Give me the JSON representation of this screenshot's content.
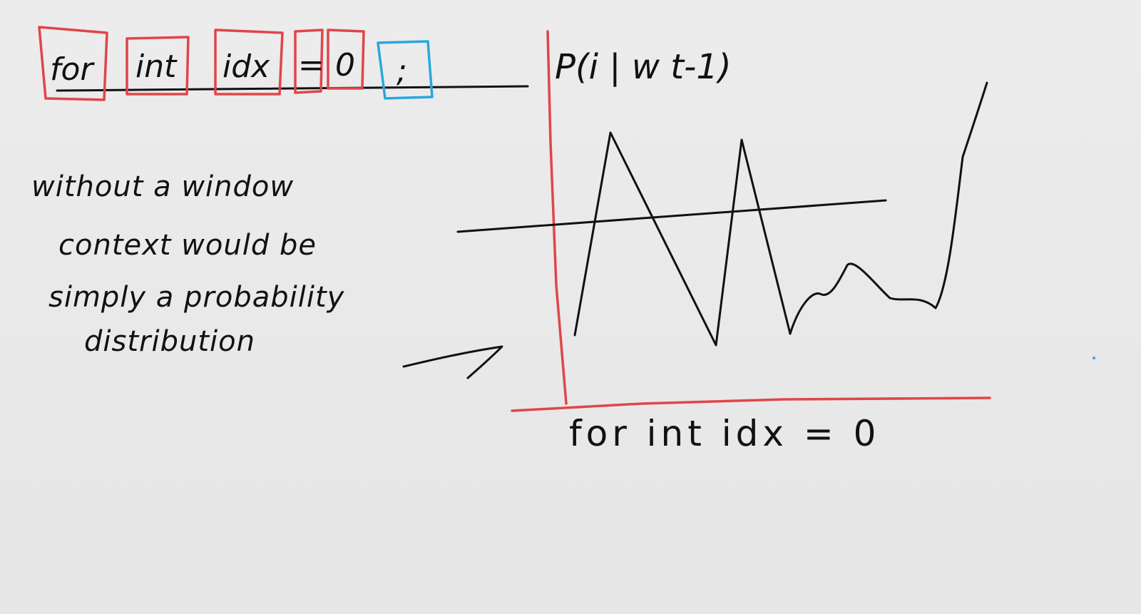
{
  "tokens": [
    {
      "text": "for",
      "box": "red"
    },
    {
      "text": "int",
      "box": "red"
    },
    {
      "text": "idx",
      "box": "red"
    },
    {
      "text": "=",
      "box": "red"
    },
    {
      "text": "0",
      "box": "red"
    },
    {
      "text": ";",
      "box": "blue"
    }
  ],
  "note": {
    "line1": "without a window",
    "line2": "context would be",
    "line3": "simply a probability",
    "line4": "distribution"
  },
  "graph": {
    "y_label": "P(i | w t-1)",
    "x_label": "for int idx = 0"
  },
  "colors": {
    "background": "#e9e9e9",
    "ink": "#111111",
    "red_box": "#e0454a",
    "blue_box": "#2aa7df"
  }
}
